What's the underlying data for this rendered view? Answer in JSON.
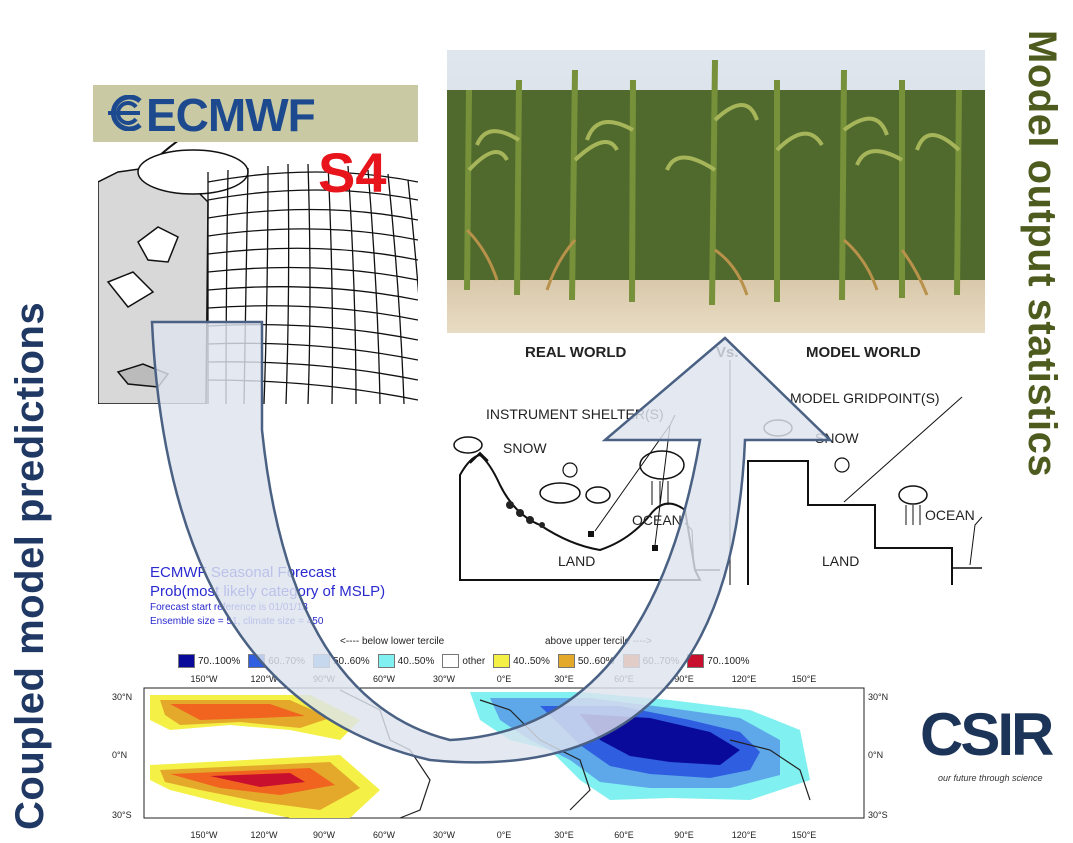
{
  "left_title": "Coupled model predictions",
  "right_title": "Model output statistics",
  "ecmwf": {
    "logo_text": "ECMWF",
    "version": "S4"
  },
  "diagram": {
    "real_world": "REAL WORLD",
    "vs": "Vs.",
    "model_world": "MODEL WORLD",
    "instrument_shelter": "INSTRUMENT SHELTER(S)",
    "model_gridpoint": "MODEL GRIDPOINT(S)",
    "snow_left": "SNOW",
    "snow_right": "SNOW",
    "ocean_left": "OCEAN",
    "ocean_right": "OCEAN",
    "land_left": "LAND",
    "land_right": "LAND"
  },
  "forecast": {
    "title_line1": "ECMWF Seasonal Forecast",
    "title_line2": "Prob(most likely category of MSLP)",
    "start_ref": "Forecast start reference is 01/01/13",
    "ensemble": "Ensemble size = 51, climate size = 450",
    "below": "<---- below lower tercile",
    "above": "above upper tercile ---->",
    "legend": [
      {
        "label": "70..100%",
        "color": "#0a0a9a"
      },
      {
        "label": "60..70%",
        "color": "#2f5ee0"
      },
      {
        "label": "50..60%",
        "color": "#5ea8ea"
      },
      {
        "label": "40..50%",
        "color": "#80f0f0"
      },
      {
        "label": "other",
        "color": "#ffffff"
      },
      {
        "label": "40..50%",
        "color": "#f4f046"
      },
      {
        "label": "50..60%",
        "color": "#e4a92a"
      },
      {
        "label": "60..70%",
        "color": "#f06420"
      },
      {
        "label": "70..100%",
        "color": "#c8102e"
      }
    ],
    "lon_ticks": [
      "150°W",
      "120°W",
      "90°W",
      "60°W",
      "30°W",
      "0°E",
      "30°E",
      "60°E",
      "90°E",
      "120°E",
      "150°E"
    ],
    "lat_ticks": [
      "30°N",
      "0°N",
      "30°S"
    ]
  },
  "csir": {
    "logo_text": "CSIR",
    "tagline": "our future through science"
  },
  "colors": {
    "navy": "#1f3864",
    "olive": "#4e5b1e",
    "arrow_fill": "#dde3ee",
    "arrow_stroke": "#4a6184"
  }
}
